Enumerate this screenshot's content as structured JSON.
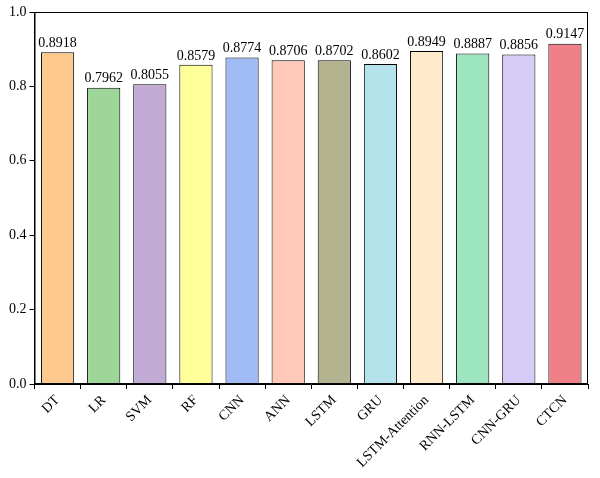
{
  "chart_data": {
    "type": "bar",
    "categories": [
      "DT",
      "LR",
      "SVM",
      "RF",
      "CNN",
      "ANN",
      "LSTM",
      "GRU",
      "LSTM-Attention",
      "RNN-LSTM",
      "CNN-GRU",
      "CTCN"
    ],
    "values": [
      0.8918,
      0.7962,
      0.8055,
      0.8579,
      0.8774,
      0.8706,
      0.8702,
      0.8602,
      0.8949,
      0.8887,
      0.8856,
      0.9147
    ],
    "colors": [
      "#FDC98D",
      "#9ED69A",
      "#C2ACD6",
      "#FFFF99",
      "#9FBAF5",
      "#FFC8B8",
      "#B3B38F",
      "#B5E3EB",
      "#FFEBCC",
      "#9EE6C0",
      "#D6CCF5",
      "#F08088"
    ],
    "ylim": [
      0,
      1
    ],
    "yticks": [
      {
        "value": 0,
        "label": "0.0"
      },
      0.2,
      0.4,
      0.6,
      0.8,
      {
        "value": 1,
        "label": "1.0"
      }
    ],
    "grid": false,
    "data_labels": true
  }
}
